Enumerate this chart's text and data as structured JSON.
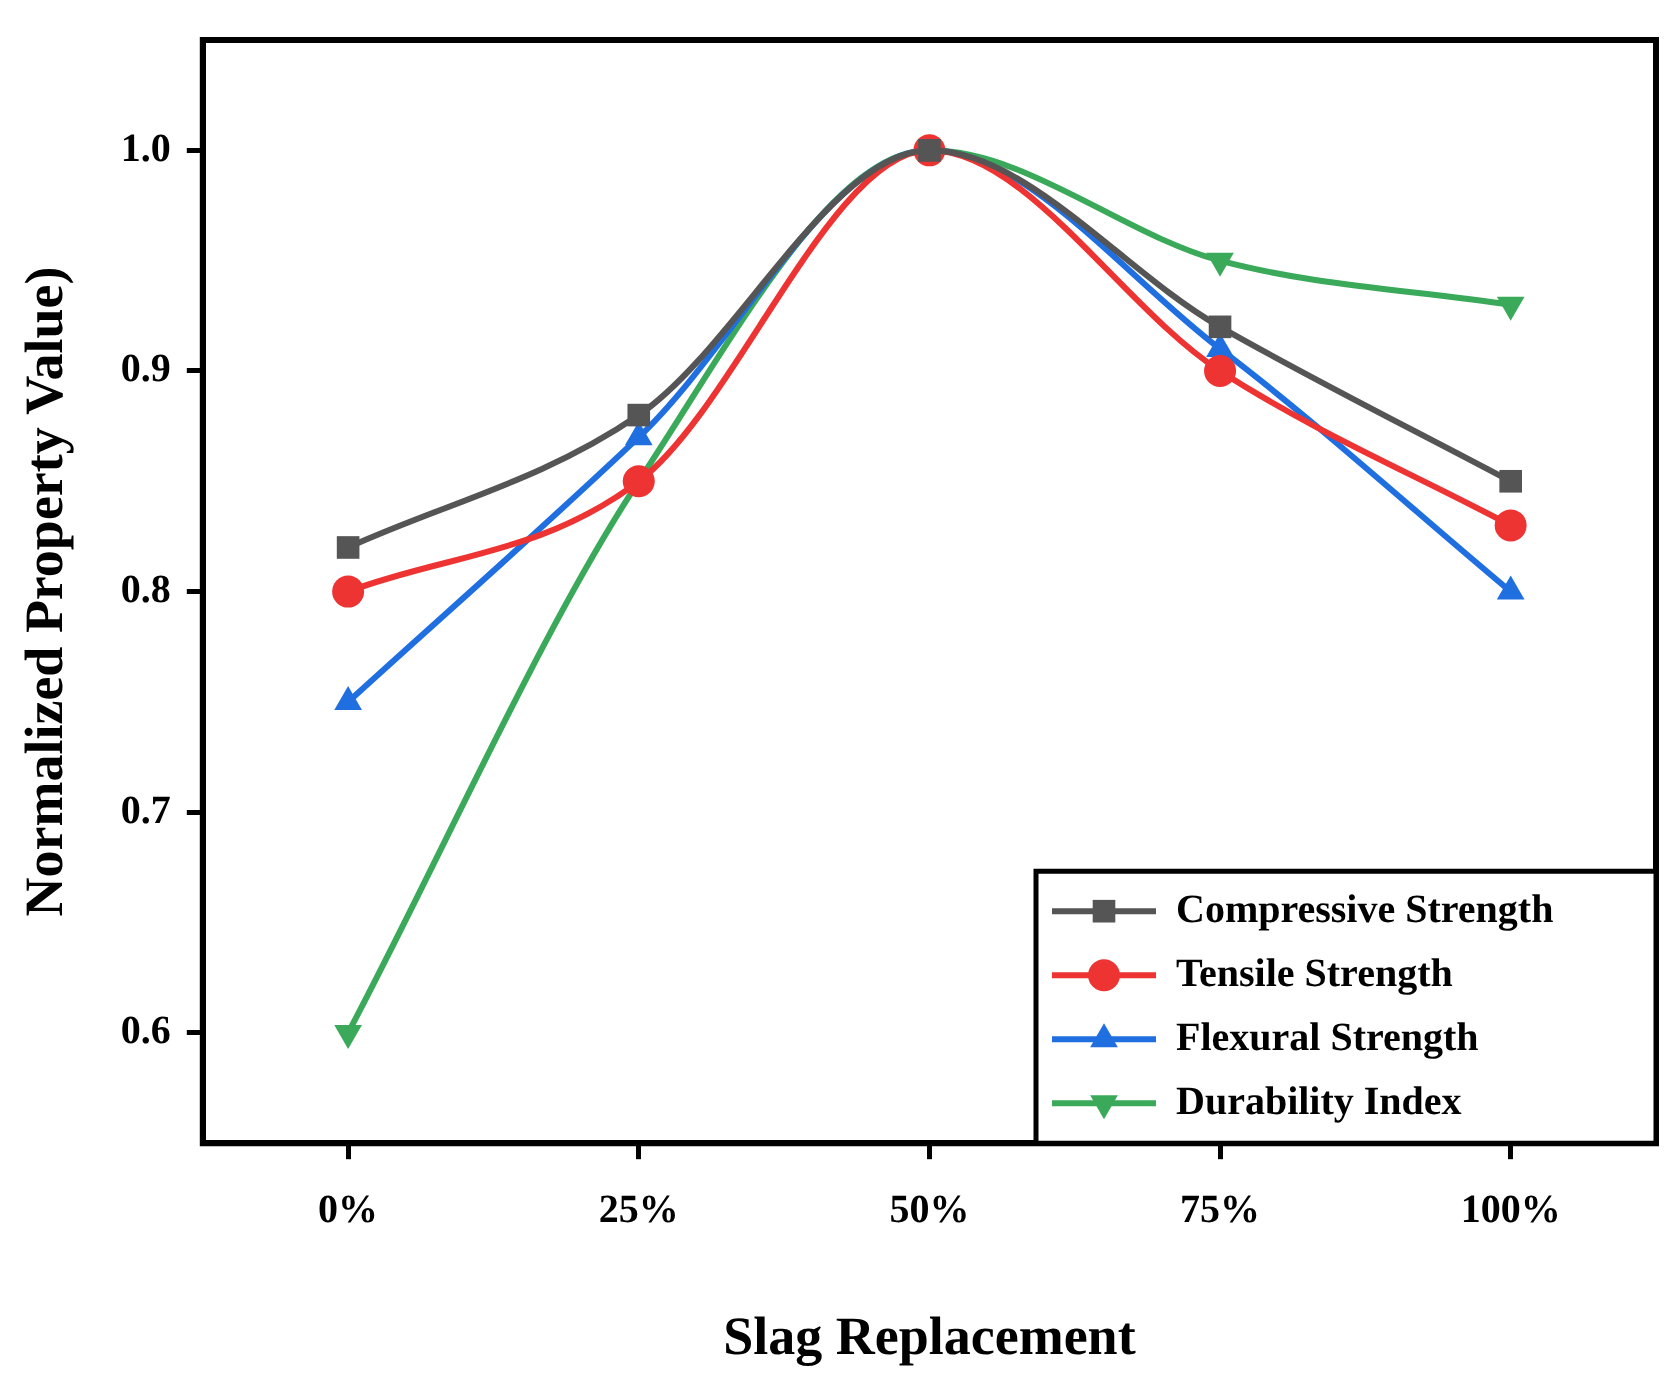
{
  "chart_data": {
    "type": "line",
    "xlabel": "Slag Replacement",
    "ylabel": "Normalized Property Value)",
    "categories": [
      "0%",
      "25%",
      "50%",
      "75%",
      "100%"
    ],
    "ylim": [
      0.55,
      1.05
    ],
    "yticks": [
      0.6,
      0.7,
      0.8,
      0.9,
      {
        "value": 1,
        "label": "1.0"
      }
    ],
    "grid": false,
    "legend": "bottom right",
    "line_style": "solid",
    "series": [
      {
        "name": "Compressive Strength",
        "color": "#555555",
        "marker": "square",
        "values": [
          0.82,
          0.88,
          1.0,
          0.92,
          0.85
        ]
      },
      {
        "name": "Tensile Strength",
        "color": "#ee3333",
        "marker": "circle",
        "values": [
          0.8,
          0.85,
          1.0,
          0.9,
          0.83
        ]
      },
      {
        "name": "Flexural Strength",
        "color": "#1f6fe0",
        "marker": "triangle",
        "values": [
          0.75,
          0.87,
          1.0,
          0.91,
          0.8
        ]
      },
      {
        "name": "Durability Index",
        "color": "#3aaa5a",
        "marker": "triangle-down",
        "values": [
          0.6,
          0.85,
          1.0,
          0.95,
          0.93
        ]
      }
    ]
  }
}
